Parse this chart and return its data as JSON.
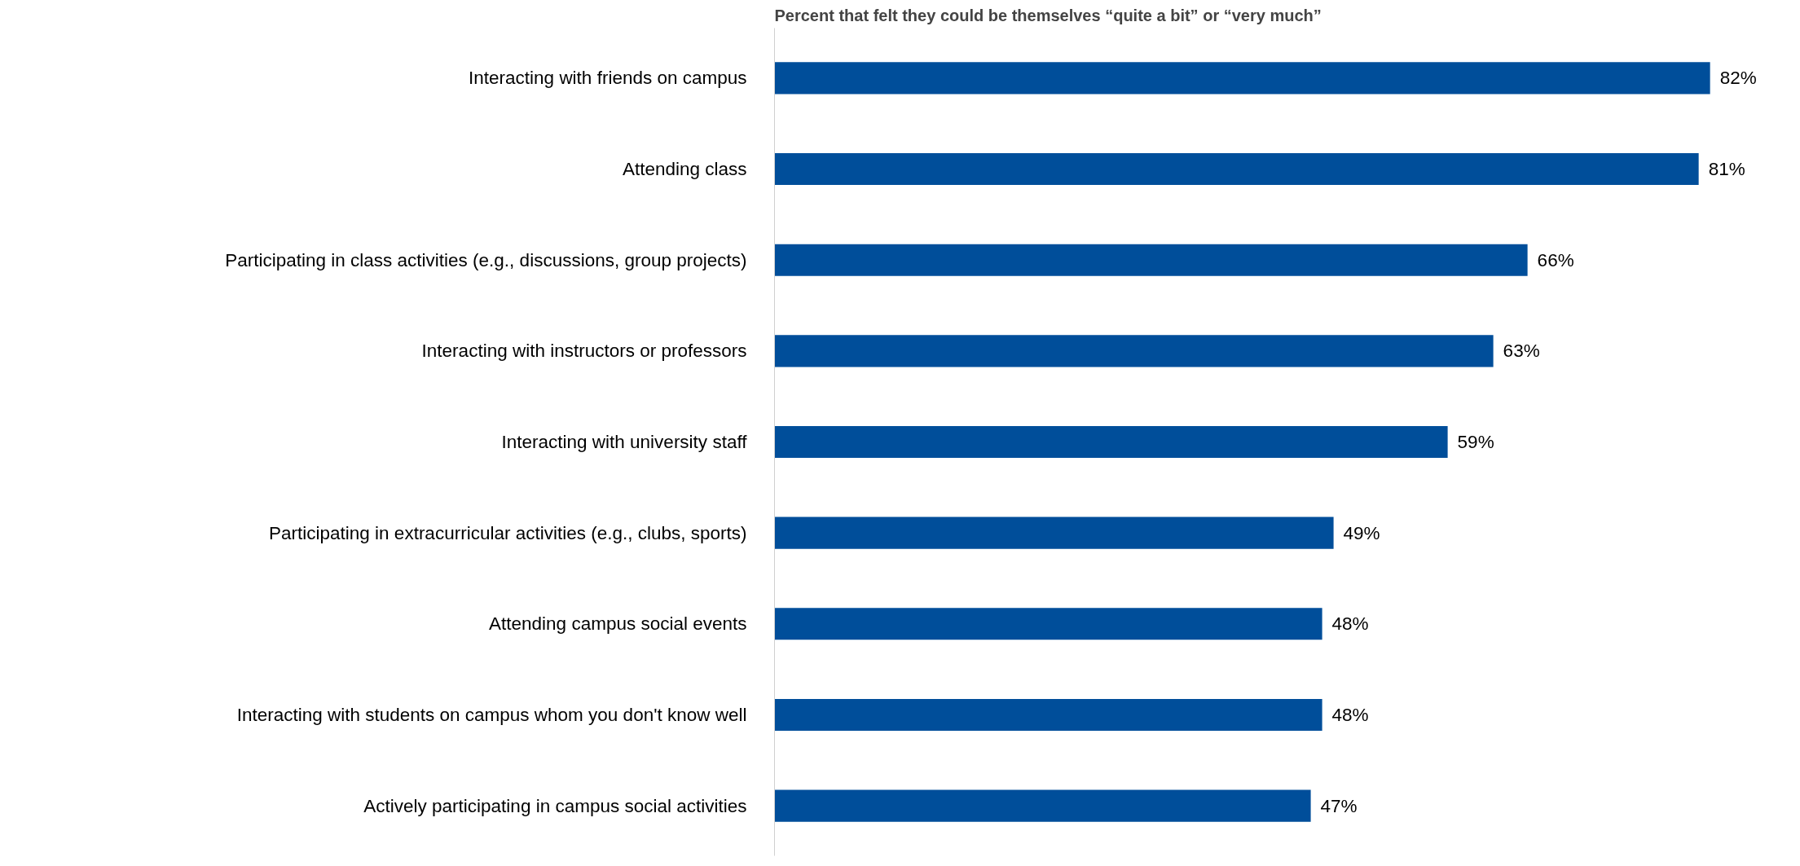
{
  "chart_data": {
    "type": "bar",
    "orientation": "horizontal",
    "title": "Percent that felt they could be themselves “quite a bit” or “very much”",
    "categories": [
      "Interacting with friends on campus",
      "Attending class",
      "Participating in class activities (e.g., discussions, group projects)",
      "Interacting with instructors or professors",
      "Interacting with university staff",
      "Participating in extracurricular activities (e.g., clubs, sports)",
      "Attending campus social events",
      "Interacting with students on campus whom you don't know well",
      "Actively participating in campus social activities"
    ],
    "values": [
      82,
      81,
      66,
      63,
      59,
      49,
      48,
      48,
      47
    ],
    "value_labels": [
      "82%",
      "81%",
      "66%",
      "63%",
      "59%",
      "49%",
      "48%",
      "48%",
      "47%"
    ],
    "color": "#004e9a"
  }
}
